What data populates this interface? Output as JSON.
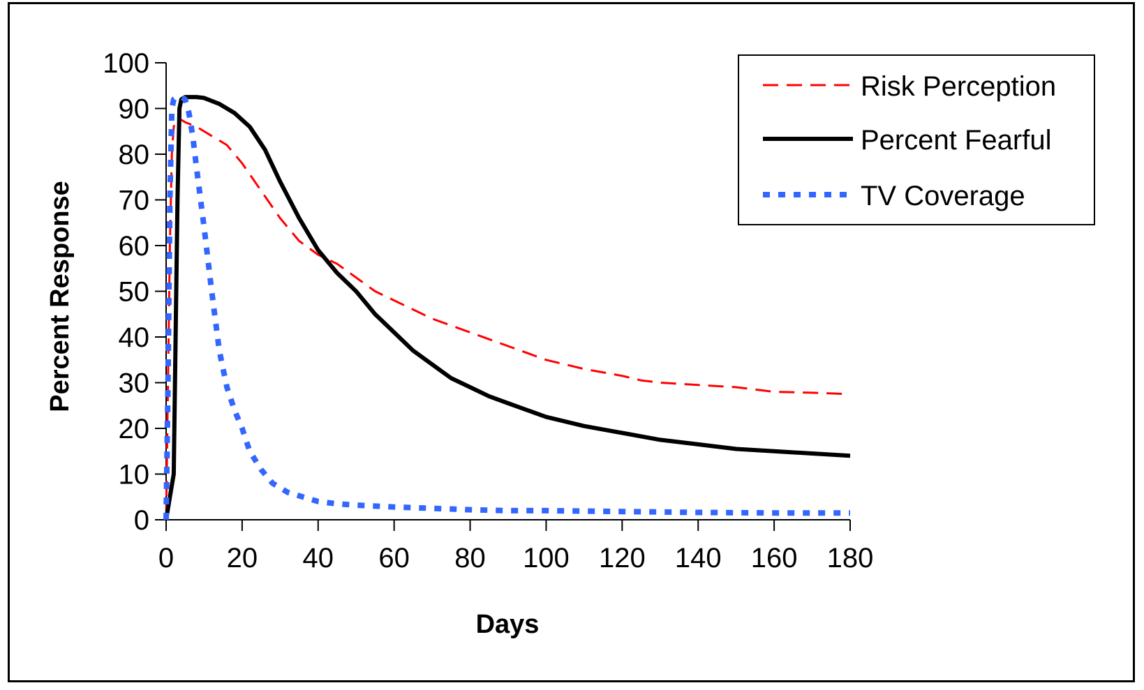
{
  "chart_data": {
    "type": "line",
    "title": "",
    "xlabel": "Days",
    "ylabel": "Percent Response",
    "xlim": [
      0,
      180
    ],
    "ylim": [
      0,
      100
    ],
    "x_ticks": [
      "0",
      "20",
      "40",
      "60",
      "80",
      "100",
      "120",
      "140",
      "160",
      "180"
    ],
    "y_ticks": [
      "0",
      "10",
      "20",
      "30",
      "40",
      "50",
      "60",
      "70",
      "80",
      "90",
      "100"
    ],
    "grid": false,
    "legend_position": "top-right",
    "series": [
      {
        "name": "Risk Perception",
        "color": "#ff0000",
        "style": "dashed",
        "x": [
          0,
          0.5,
          1,
          1.5,
          2,
          3,
          5,
          8,
          12,
          16,
          20,
          25,
          30,
          35,
          40,
          45,
          50,
          55,
          60,
          70,
          80,
          90,
          100,
          110,
          120,
          125,
          130,
          140,
          150,
          155,
          160,
          170,
          180
        ],
        "y": [
          0,
          30,
          60,
          80,
          86,
          88,
          87,
          86,
          84,
          82,
          78,
          72,
          66,
          61,
          58,
          56,
          53,
          50,
          48,
          44,
          41,
          38,
          35,
          33,
          31.5,
          30.5,
          30,
          29.5,
          29,
          28.5,
          28,
          27.8,
          27.5
        ]
      },
      {
        "name": "Percent Fearful",
        "color": "#000000",
        "style": "solid",
        "x": [
          0,
          1,
          2,
          2.5,
          3,
          3.5,
          4,
          5,
          8,
          10,
          14,
          18,
          22,
          26,
          30,
          35,
          40,
          45,
          50,
          55,
          60,
          65,
          70,
          75,
          80,
          85,
          90,
          95,
          100,
          110,
          120,
          130,
          140,
          150,
          160,
          170,
          180
        ],
        "y": [
          0,
          5,
          10,
          40,
          70,
          90,
          92,
          92.5,
          92.5,
          92.3,
          91,
          89,
          86,
          81,
          74,
          66,
          59,
          54,
          50,
          45,
          41,
          37,
          34,
          31,
          29,
          27,
          25.5,
          24,
          22.5,
          20.5,
          19,
          17.5,
          16.5,
          15.5,
          15,
          14.5,
          14
        ]
      },
      {
        "name": "TV Coverage",
        "color": "#3366ff",
        "style": "dotted",
        "x": [
          0,
          0.5,
          1,
          1.5,
          2,
          3,
          4,
          5,
          6,
          7,
          8,
          10,
          12,
          14,
          16,
          18,
          20,
          22,
          25,
          28,
          32,
          36,
          40,
          45,
          50,
          60,
          70,
          80,
          90,
          100,
          120,
          140,
          160,
          180
        ],
        "y": [
          0,
          30,
          70,
          90,
          92,
          92.5,
          92.5,
          92,
          89,
          84,
          77,
          64,
          50,
          37,
          29,
          24,
          20,
          15,
          11,
          8,
          6,
          5,
          4,
          3.5,
          3.2,
          2.8,
          2.5,
          2.2,
          2,
          2,
          1.8,
          1.6,
          1.5,
          1.5
        ]
      }
    ]
  }
}
